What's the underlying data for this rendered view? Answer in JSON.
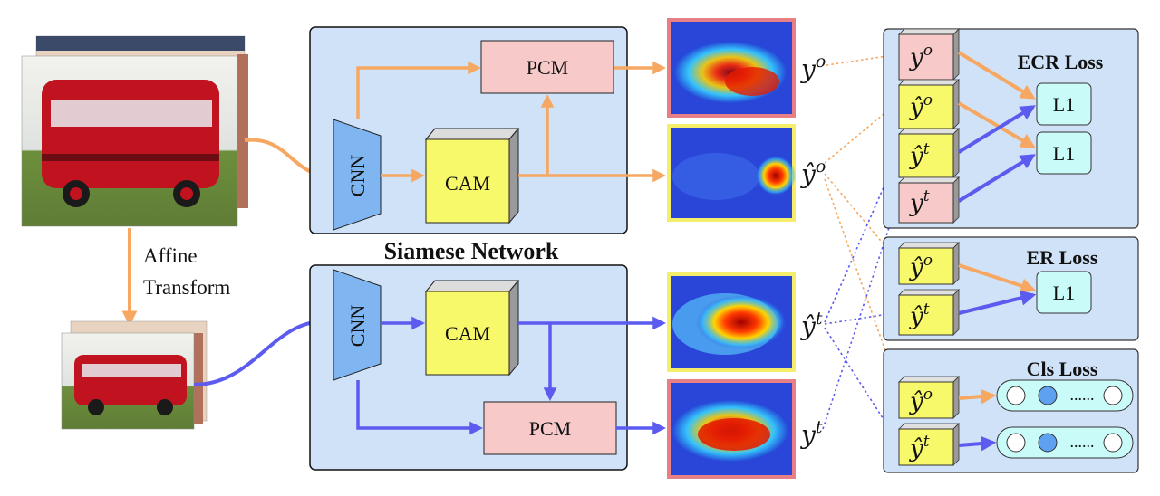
{
  "colors": {
    "orange": "#f6a862",
    "blue": "#5b5bf0",
    "panel_fill": "#cfe2f7",
    "pcm_fill": "#f7c9c9",
    "cam_fill": "#f8f86b",
    "cnn_fill": "#7fb6f2",
    "l1_fill": "#c9fbf8",
    "pink_border": "#e77f86",
    "yellow_border": "#f4ee6a"
  },
  "left": {
    "affine_line1": "Affine",
    "affine_line2": "Transform"
  },
  "siamese": {
    "title": "Siamese Network",
    "cnn_top": "CNN",
    "cnn_bottom": "CNN",
    "cam_top": "CAM",
    "cam_bottom": "CAM",
    "pcm_top": "PCM",
    "pcm_bottom": "PCM"
  },
  "outputs": {
    "y_o": {
      "base": "y",
      "sup": "o"
    },
    "yhat_o": {
      "base": "ŷ",
      "sup": "o"
    },
    "yhat_t": {
      "base": "ŷ",
      "sup": "t"
    },
    "y_t": {
      "base": "y",
      "sup": "t"
    }
  },
  "losses": {
    "ecr": {
      "title": "ECR Loss",
      "l1_a": "L1",
      "l1_b": "L1",
      "inputs": [
        {
          "base": "y",
          "sup": "o"
        },
        {
          "base": "ŷ",
          "sup": "o"
        },
        {
          "base": "ŷ",
          "sup": "t"
        },
        {
          "base": "y",
          "sup": "t"
        }
      ]
    },
    "er": {
      "title": "ER Loss",
      "l1": "L1",
      "inputs": [
        {
          "base": "ŷ",
          "sup": "o"
        },
        {
          "base": "ŷ",
          "sup": "t"
        }
      ]
    },
    "cls": {
      "title": "Cls Loss",
      "dots": "......",
      "inputs": [
        {
          "base": "ŷ",
          "sup": "o"
        },
        {
          "base": "ŷ",
          "sup": "t"
        }
      ]
    }
  }
}
